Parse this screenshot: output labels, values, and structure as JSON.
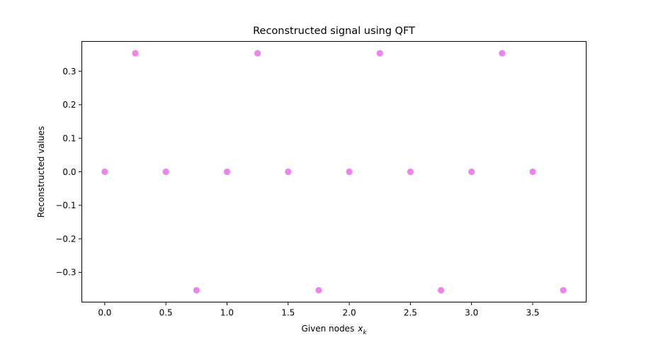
{
  "chart_data": {
    "type": "scatter",
    "title": "Reconstructed signal using QFT",
    "xlabel": "Given nodes",
    "xlabel_symbol": "x",
    "xlabel_subscript": "k",
    "ylabel": "Reconstructed values",
    "xlim": [
      -0.1875,
      3.9375
    ],
    "ylim": [
      -0.3889,
      0.3889
    ],
    "grid": false,
    "x_ticks": [
      0.0,
      0.5,
      1.0,
      1.5,
      2.0,
      2.5,
      3.0,
      3.5
    ],
    "x_tick_labels": [
      "0.0",
      "0.5",
      "1.0",
      "1.5",
      "2.0",
      "2.5",
      "3.0",
      "3.5"
    ],
    "y_ticks": [
      -0.3,
      -0.2,
      -0.1,
      0.0,
      0.1,
      0.2,
      0.3
    ],
    "y_tick_labels": [
      "−0.3",
      "−0.2",
      "−0.1",
      "0.0",
      "0.1",
      "0.2",
      "0.3"
    ],
    "series": [
      {
        "color": "#ee82ee",
        "x": [
          0.0,
          0.25,
          0.5,
          0.75,
          1.0,
          1.25,
          1.5,
          1.75,
          2.0,
          2.25,
          2.5,
          2.75,
          3.0,
          3.25,
          3.5,
          3.75
        ],
        "y": [
          0.0,
          0.3536,
          0.0,
          -0.3536,
          0.0,
          0.3536,
          0.0,
          -0.3536,
          0.0,
          0.3536,
          0.0,
          -0.3536,
          0.0,
          0.3536,
          0.0,
          -0.3536
        ]
      }
    ]
  }
}
